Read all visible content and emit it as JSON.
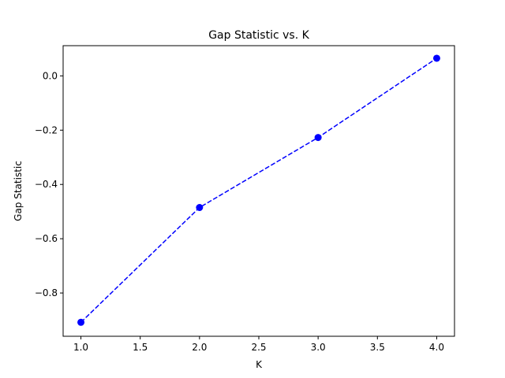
{
  "chart_data": {
    "type": "line",
    "title": "Gap Statistic vs. K",
    "xlabel": "K",
    "ylabel": "Gap Statistic",
    "xlim": [
      0.85,
      4.15
    ],
    "ylim": [
      -0.9594,
      0.1113
    ],
    "x_ticks": [
      1.0,
      1.5,
      2.0,
      2.5,
      3.0,
      3.5,
      4.0
    ],
    "x_tick_labels": [
      "1.0",
      "1.5",
      "2.0",
      "2.5",
      "3.0",
      "3.5",
      "4.0"
    ],
    "y_ticks": [
      -0.8,
      -0.6,
      -0.4,
      -0.2,
      0.0
    ],
    "y_tick_labels": [
      "−0.8",
      "−0.6",
      "−0.4",
      "−0.2",
      "0.0"
    ],
    "grid": false,
    "series": [
      {
        "x": [
          1,
          2,
          3,
          4
        ],
        "values": [
          -0.908,
          -0.485,
          -0.227,
          0.065
        ],
        "color": "#0000ff",
        "line_style": "dashed",
        "marker": "circle"
      }
    ]
  }
}
